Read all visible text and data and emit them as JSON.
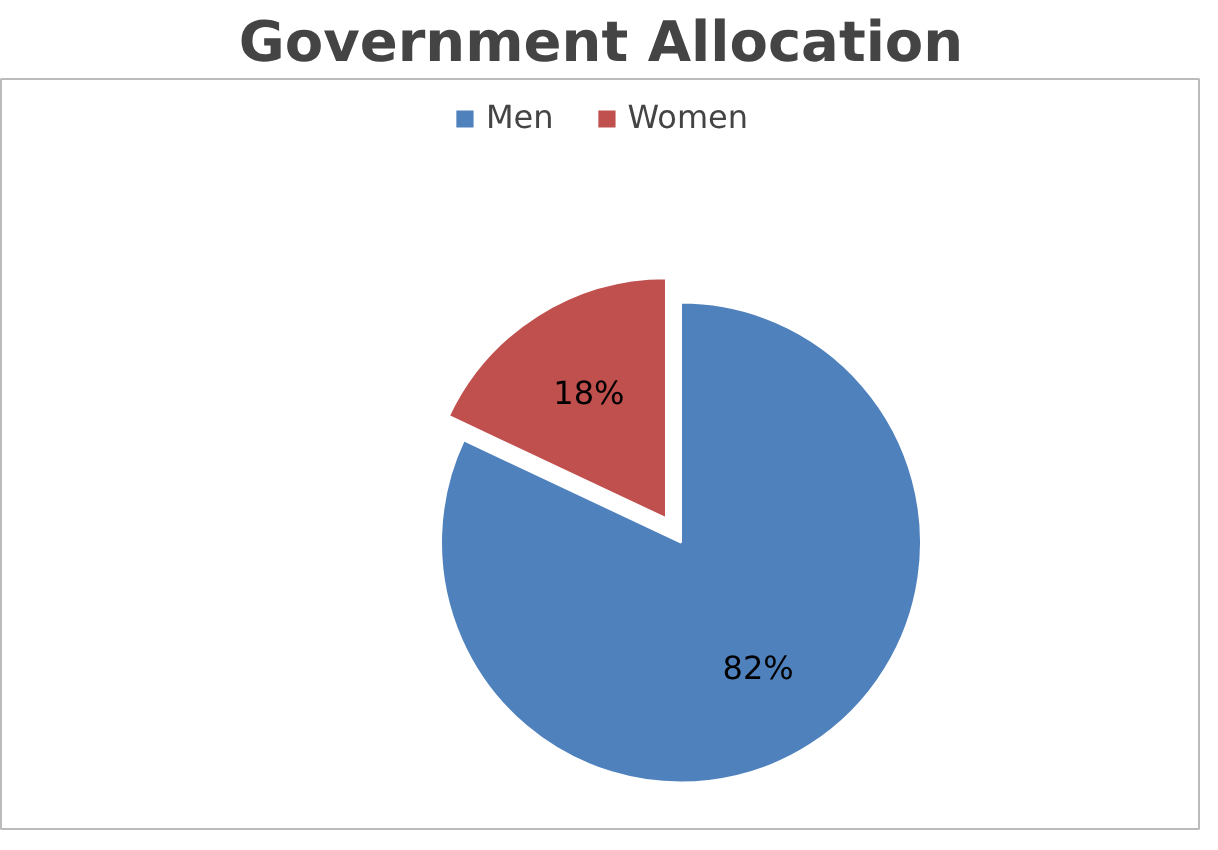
{
  "chart_data": {
    "type": "pie",
    "title": "Government Allocation",
    "categories": [
      "Men",
      "Women"
    ],
    "values": [
      82,
      18
    ],
    "colors": [
      "#4f81bd",
      "#c0504d"
    ],
    "value_labels": [
      "82%",
      "18%"
    ],
    "legend": "top"
  }
}
